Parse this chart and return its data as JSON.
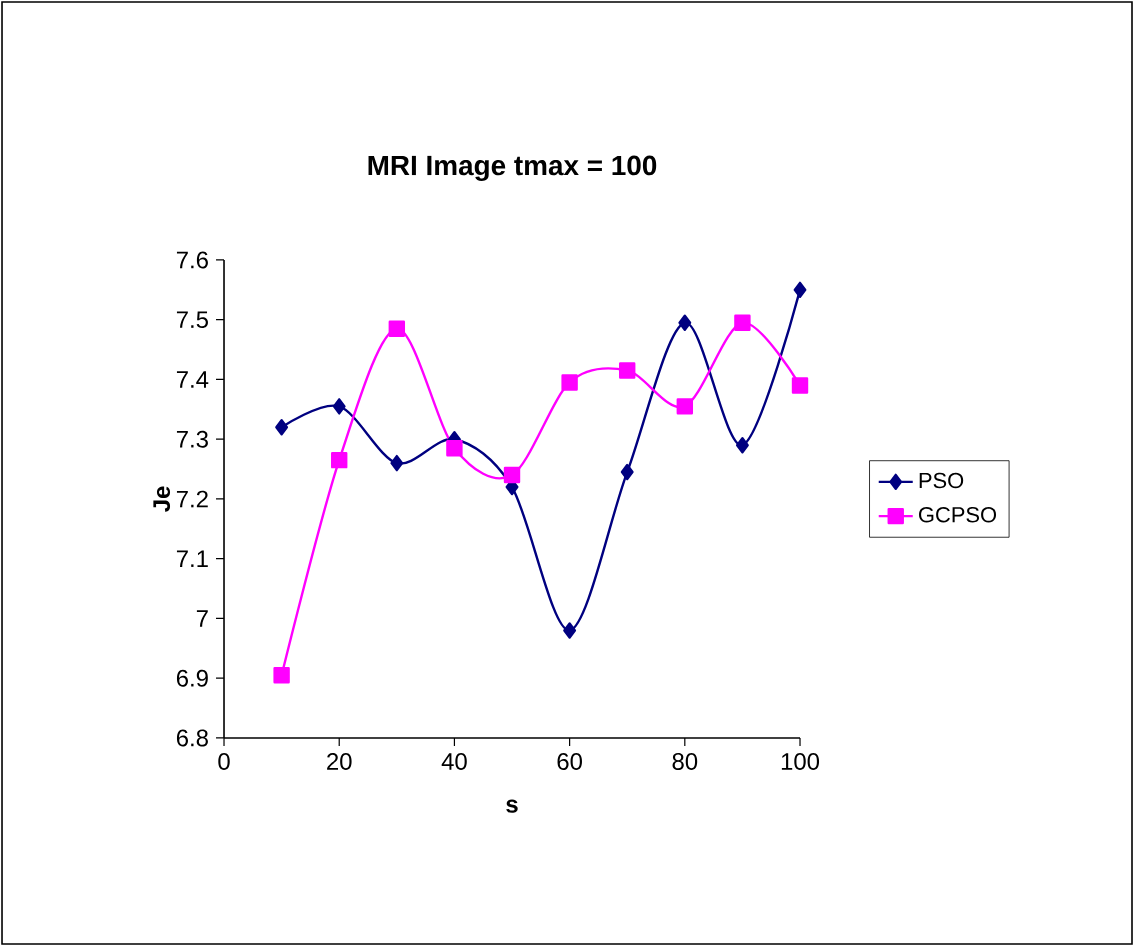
{
  "chart_data": {
    "type": "line",
    "title": "MRI Image tmax = 100",
    "xlabel": "s",
    "ylabel": "Je",
    "x": [
      10,
      20,
      30,
      40,
      50,
      60,
      70,
      80,
      90,
      100
    ],
    "series": [
      {
        "name": "PSO",
        "color": "#000080",
        "marker": "diamond",
        "values": [
          7.32,
          7.355,
          7.26,
          7.3,
          7.22,
          6.98,
          7.245,
          7.495,
          7.29,
          7.55
        ]
      },
      {
        "name": "GCPSO",
        "color": "#ff00ff",
        "marker": "square",
        "values": [
          6.905,
          7.265,
          7.485,
          7.285,
          7.24,
          7.395,
          7.415,
          7.355,
          7.495,
          7.39
        ]
      }
    ],
    "xlim": [
      0,
      100
    ],
    "xticks": [
      0,
      20,
      40,
      60,
      80,
      100
    ],
    "ylim": [
      6.8,
      7.6
    ],
    "yticks": [
      6.8,
      6.9,
      7,
      7.1,
      7.2,
      7.3,
      7.4,
      7.5,
      7.6
    ],
    "legend": "right",
    "grid": false
  }
}
